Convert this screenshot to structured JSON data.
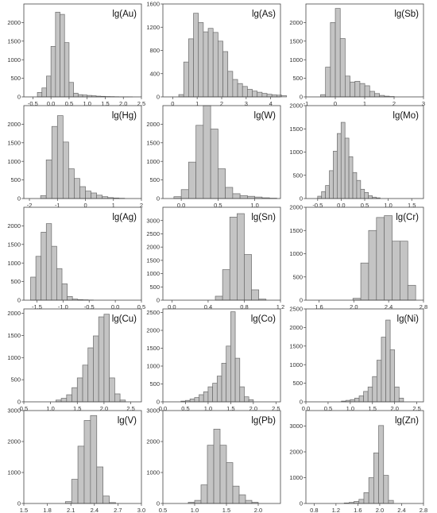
{
  "chart_data": [
    {
      "type": "bar",
      "title": "lg(Au)",
      "xlim": [
        -0.75,
        2.5
      ],
      "ylim": [
        0,
        2500
      ],
      "xticks": [
        {
          "v": -0.5,
          "t": "-0.5"
        },
        {
          "v": 0,
          "t": "0.0"
        },
        {
          "v": 0.5,
          "t": "0.5"
        },
        {
          "v": 1,
          "t": "1.0"
        },
        {
          "v": 1.5,
          "t": "1.5"
        },
        {
          "v": 2,
          "t": "2.0"
        },
        {
          "v": 2.5,
          "t": "2.5"
        }
      ],
      "yticks": [
        {
          "v": 0,
          "t": "0"
        },
        {
          "v": 500,
          "t": "500"
        },
        {
          "v": 1000,
          "t": "1000"
        },
        {
          "v": 1500,
          "t": "1500"
        },
        {
          "v": 2000,
          "t": "2000"
        }
      ],
      "bin_start": -0.375,
      "bin_width": 0.125,
      "values": [
        120,
        240,
        560,
        1360,
        2280,
        2220,
        1460,
        390,
        100,
        60,
        50,
        40,
        30,
        20,
        15,
        10,
        8,
        5,
        3,
        2,
        1
      ]
    },
    {
      "type": "bar",
      "title": "lg(As)",
      "xlim": [
        -0.4,
        4.4
      ],
      "ylim": [
        0,
        1600
      ],
      "xticks": [
        {
          "v": 0,
          "t": "0"
        },
        {
          "v": 1,
          "t": "1"
        },
        {
          "v": 2,
          "t": "2"
        },
        {
          "v": 3,
          "t": "3"
        },
        {
          "v": 4,
          "t": "4"
        }
      ],
      "yticks": [
        {
          "v": 0,
          "t": "0"
        },
        {
          "v": 400,
          "t": "400"
        },
        {
          "v": 800,
          "t": "800"
        },
        {
          "v": 1200,
          "t": "1200"
        },
        {
          "v": 1600,
          "t": "1600"
        }
      ],
      "bin_start": 0.25,
      "bin_width": 0.2,
      "values": [
        40,
        600,
        1000,
        1440,
        1280,
        1120,
        1180,
        1110,
        960,
        780,
        440,
        300,
        230,
        180,
        130,
        100,
        80,
        60,
        45,
        35,
        30,
        20
      ]
    },
    {
      "type": "bar",
      "title": "lg(Sb)",
      "xlim": [
        -1,
        3
      ],
      "ylim": [
        0,
        2500
      ],
      "xticks": [
        {
          "v": -1,
          "t": "-1"
        },
        {
          "v": 0,
          "t": "0"
        },
        {
          "v": 1,
          "t": "1"
        },
        {
          "v": 2,
          "t": "2"
        },
        {
          "v": 3,
          "t": "3"
        }
      ],
      "yticks": [
        {
          "v": 0,
          "t": "0"
        },
        {
          "v": 500,
          "t": "500"
        },
        {
          "v": 1000,
          "t": "1000"
        },
        {
          "v": 1500,
          "t": "1500"
        },
        {
          "v": 2000,
          "t": "2000"
        }
      ],
      "bin_start": -0.5,
      "bin_width": 0.167,
      "values": [
        60,
        800,
        2000,
        2380,
        1570,
        560,
        400,
        420,
        360,
        300,
        150,
        90,
        40,
        20,
        10
      ]
    },
    {
      "type": "bar",
      "title": "lg(Hg)",
      "xlim": [
        -2.2,
        2
      ],
      "ylim": [
        0,
        2500
      ],
      "xticks": [
        {
          "v": -2,
          "t": "-2"
        },
        {
          "v": -1,
          "t": "-1"
        },
        {
          "v": 0,
          "t": "0"
        },
        {
          "v": 1,
          "t": "1"
        },
        {
          "v": 2,
          "t": "2"
        }
      ],
      "yticks": [
        {
          "v": 0,
          "t": "0"
        },
        {
          "v": 500,
          "t": "500"
        },
        {
          "v": 1000,
          "t": "1000"
        },
        {
          "v": 1500,
          "t": "1500"
        },
        {
          "v": 2000,
          "t": "2000"
        }
      ],
      "bin_start": -1.6,
      "bin_width": 0.2,
      "values": [
        80,
        1040,
        1940,
        2230,
        1520,
        800,
        540,
        320,
        200,
        150,
        90,
        50,
        25,
        15,
        8
      ]
    },
    {
      "type": "bar",
      "title": "lg(W)",
      "xlim": [
        -0.25,
        1.35
      ],
      "ylim": [
        0,
        2500
      ],
      "xticks": [
        {
          "v": 0,
          "t": "0.0"
        },
        {
          "v": 0.5,
          "t": "0.5"
        },
        {
          "v": 1,
          "t": "1.0"
        }
      ],
      "yticks": [
        {
          "v": 0,
          "t": "0"
        },
        {
          "v": 500,
          "t": "500"
        },
        {
          "v": 1000,
          "t": "1000"
        },
        {
          "v": 1500,
          "t": "1500"
        },
        {
          "v": 2000,
          "t": "2000"
        }
      ],
      "bin_start": -0.1,
      "bin_width": 0.1,
      "values": [
        50,
        240,
        980,
        1970,
        2500,
        1870,
        800,
        300,
        130,
        80,
        60,
        40,
        20,
        10
      ]
    },
    {
      "type": "bar",
      "title": "lg(Mo)",
      "xlim": [
        -0.75,
        1.75
      ],
      "ylim": [
        0,
        2000
      ],
      "xticks": [
        {
          "v": -0.5,
          "t": "-0.5"
        },
        {
          "v": 0,
          "t": "0.0"
        },
        {
          "v": 0.5,
          "t": "0.5"
        },
        {
          "v": 1,
          "t": "1.0"
        },
        {
          "v": 1.5,
          "t": "1.5"
        }
      ],
      "yticks": [
        {
          "v": 0,
          "t": "0"
        },
        {
          "v": 500,
          "t": "500"
        },
        {
          "v": 1000,
          "t": "1000"
        },
        {
          "v": 1500,
          "t": "1500"
        },
        {
          "v": 2000,
          "t": "2000"
        }
      ],
      "bin_start": -0.5,
      "bin_width": 0.083,
      "values": [
        50,
        150,
        280,
        600,
        1020,
        1400,
        1640,
        1300,
        900,
        560,
        390,
        200,
        130,
        60,
        30,
        15
      ]
    },
    {
      "type": "bar",
      "title": "lg(Ag)",
      "xlim": [
        -1.75,
        0.5
      ],
      "ylim": [
        0,
        2500
      ],
      "xticks": [
        {
          "v": -1.5,
          "t": "-1.5"
        },
        {
          "v": -1,
          "t": "-1.0"
        },
        {
          "v": -0.5,
          "t": "-0.5"
        },
        {
          "v": 0,
          "t": "0.0"
        },
        {
          "v": 0.5,
          "t": "0.5"
        }
      ],
      "yticks": [
        {
          "v": 0,
          "t": "0"
        },
        {
          "v": 500,
          "t": "500"
        },
        {
          "v": 1000,
          "t": "1000"
        },
        {
          "v": 1500,
          "t": "1500"
        },
        {
          "v": 2000,
          "t": "2000"
        }
      ],
      "bin_start": -1.62,
      "bin_width": 0.1,
      "values": [
        620,
        1180,
        1830,
        2060,
        1450,
        850,
        440,
        100,
        30,
        15,
        10,
        5
      ]
    },
    {
      "type": "bar",
      "title": "lg(Sn)",
      "xlim": [
        -0.1,
        1.2
      ],
      "ylim": [
        0,
        3500
      ],
      "xticks": [
        {
          "v": 0,
          "t": "0.0"
        },
        {
          "v": 0.4,
          "t": "0.4"
        },
        {
          "v": 0.8,
          "t": "0.8"
        },
        {
          "v": 1.2,
          "t": "1.2"
        }
      ],
      "yticks": [
        {
          "v": 0,
          "t": "0"
        },
        {
          "v": 500,
          "t": "500"
        },
        {
          "v": 1000,
          "t": "1000"
        },
        {
          "v": 1500,
          "t": "1500"
        },
        {
          "v": 2000,
          "t": "2000"
        },
        {
          "v": 2500,
          "t": "2500"
        },
        {
          "v": 3000,
          "t": "3000"
        }
      ],
      "bin_start": 0.48,
      "bin_width": 0.08,
      "values": [
        150,
        1150,
        3130,
        3260,
        1720,
        390,
        40
      ]
    },
    {
      "type": "bar",
      "title": "lg(Cr)",
      "xlim": [
        1.45,
        2.8
      ],
      "ylim": [
        0,
        2000
      ],
      "xticks": [
        {
          "v": 1.6,
          "t": "1.6"
        },
        {
          "v": 2,
          "t": "2.0"
        },
        {
          "v": 2.4,
          "t": "2.4"
        },
        {
          "v": 2.8,
          "t": "2.8"
        }
      ],
      "yticks": [
        {
          "v": 0,
          "t": "0"
        },
        {
          "v": 500,
          "t": "500"
        },
        {
          "v": 1000,
          "t": "1000"
        },
        {
          "v": 1500,
          "t": "1500"
        },
        {
          "v": 2000,
          "t": "2000"
        }
      ],
      "bin_start": 1.99,
      "bin_width": 0.09,
      "values": [
        40,
        800,
        1500,
        1780,
        1820,
        1270,
        1270,
        320
      ]
    },
    {
      "type": "bar",
      "title": "lg(Cu)",
      "xlim": [
        0.5,
        2.7
      ],
      "ylim": [
        0,
        2100
      ],
      "xticks": [
        {
          "v": 0.5,
          "t": "0.5"
        },
        {
          "v": 1,
          "t": "1.0"
        },
        {
          "v": 1.5,
          "t": "1.5"
        },
        {
          "v": 2,
          "t": "2.0"
        },
        {
          "v": 2.5,
          "t": "2.5"
        }
      ],
      "yticks": [
        {
          "v": 0,
          "t": "0"
        },
        {
          "v": 500,
          "t": "500"
        },
        {
          "v": 1000,
          "t": "1000"
        },
        {
          "v": 1500,
          "t": "1500"
        },
        {
          "v": 2000,
          "t": "2000"
        }
      ],
      "bin_start": 1.1,
      "bin_width": 0.1,
      "values": [
        40,
        80,
        160,
        320,
        540,
        830,
        1220,
        1490,
        1920,
        1980,
        540,
        180,
        40
      ]
    },
    {
      "type": "bar",
      "title": "lg(Co)",
      "xlim": [
        0,
        2.6
      ],
      "ylim": [
        0,
        2600
      ],
      "xticks": [
        {
          "v": 0,
          "t": "0.0"
        },
        {
          "v": 0.5,
          "t": "0.5"
        },
        {
          "v": 1,
          "t": "1.0"
        },
        {
          "v": 1.5,
          "t": "1.5"
        },
        {
          "v": 2,
          "t": "2.0"
        },
        {
          "v": 2.5,
          "t": "2.5"
        }
      ],
      "yticks": [
        {
          "v": 0,
          "t": "0"
        },
        {
          "v": 500,
          "t": "500"
        },
        {
          "v": 1000,
          "t": "1000"
        },
        {
          "v": 1500,
          "t": "1500"
        },
        {
          "v": 2000,
          "t": "2000"
        },
        {
          "v": 2500,
          "t": "2500"
        }
      ],
      "bin_start": 0.4,
      "bin_width": 0.1,
      "values": [
        20,
        40,
        80,
        120,
        200,
        280,
        420,
        520,
        720,
        1080,
        1560,
        2520,
        1220,
        420,
        140,
        60
      ]
    },
    {
      "type": "bar",
      "title": "lg(Ni)",
      "xlim": [
        0,
        2.65
      ],
      "ylim": [
        0,
        2500
      ],
      "xticks": [
        {
          "v": 0,
          "t": "0.0"
        },
        {
          "v": 0.5,
          "t": "0.5"
        },
        {
          "v": 1,
          "t": "1.0"
        },
        {
          "v": 1.5,
          "t": "1.5"
        },
        {
          "v": 2,
          "t": "2.0"
        },
        {
          "v": 2.5,
          "t": "2.5"
        }
      ],
      "yticks": [
        {
          "v": 0,
          "t": "0"
        },
        {
          "v": 500,
          "t": "500"
        },
        {
          "v": 1000,
          "t": "1000"
        },
        {
          "v": 1500,
          "t": "1500"
        },
        {
          "v": 2000,
          "t": "2000"
        },
        {
          "v": 2500,
          "t": "2500"
        }
      ],
      "bin_start": 0.8,
      "bin_width": 0.1,
      "values": [
        20,
        40,
        60,
        100,
        160,
        280,
        400,
        680,
        1120,
        1740,
        2200,
        1400,
        400,
        100
      ]
    },
    {
      "type": "bar",
      "title": "lg(V)",
      "xlim": [
        1.5,
        3.0
      ],
      "ylim": [
        0,
        3000
      ],
      "xticks": [
        {
          "v": 1.5,
          "t": "1.5"
        },
        {
          "v": 1.8,
          "t": "1.8"
        },
        {
          "v": 2.1,
          "t": "2.1"
        },
        {
          "v": 2.4,
          "t": "2.4"
        },
        {
          "v": 2.7,
          "t": "2.7"
        },
        {
          "v": 3,
          "t": "3.0"
        }
      ],
      "yticks": [
        {
          "v": 0,
          "t": "0"
        },
        {
          "v": 1000,
          "t": "1000"
        },
        {
          "v": 2000,
          "t": "2000"
        },
        {
          "v": 3000,
          "t": "3000"
        }
      ],
      "bin_start": 2.03,
      "bin_width": 0.08,
      "values": [
        60,
        780,
        1850,
        2680,
        2840,
        1180,
        240,
        30
      ]
    },
    {
      "type": "bar",
      "title": "lg(Pb)",
      "xlim": [
        0.5,
        2.35
      ],
      "ylim": [
        0,
        3000
      ],
      "xticks": [
        {
          "v": 0.5,
          "t": "0.5"
        },
        {
          "v": 1,
          "t": "1.0"
        },
        {
          "v": 1.5,
          "t": "1.5"
        },
        {
          "v": 2,
          "t": "2.0"
        }
      ],
      "yticks": [
        {
          "v": 0,
          "t": "0"
        },
        {
          "v": 1000,
          "t": "1000"
        },
        {
          "v": 2000,
          "t": "2000"
        },
        {
          "v": 3000,
          "t": "3000"
        }
      ],
      "bin_start": 0.9,
      "bin_width": 0.1,
      "values": [
        40,
        100,
        600,
        1880,
        2400,
        1880,
        1320,
        560,
        280,
        100,
        40
      ]
    },
    {
      "type": "bar",
      "title": "lg(Zn)",
      "xlim": [
        0.65,
        2.8
      ],
      "ylim": [
        0,
        3600
      ],
      "xticks": [
        {
          "v": 0.8,
          "t": "0.8"
        },
        {
          "v": 1.2,
          "t": "1.2"
        },
        {
          "v": 1.6,
          "t": "1.6"
        },
        {
          "v": 2,
          "t": "2.0"
        },
        {
          "v": 2.4,
          "t": "2.4"
        },
        {
          "v": 2.8,
          "t": "2.8"
        }
      ],
      "yticks": [
        {
          "v": 0,
          "t": "0"
        },
        {
          "v": 1000,
          "t": "1000"
        },
        {
          "v": 2000,
          "t": "2000"
        },
        {
          "v": 3000,
          "t": "3000"
        }
      ],
      "bin_start": 1.35,
      "bin_width": 0.09,
      "values": [
        20,
        40,
        80,
        160,
        420,
        1000,
        1960,
        3020,
        1090,
        120
      ]
    }
  ]
}
